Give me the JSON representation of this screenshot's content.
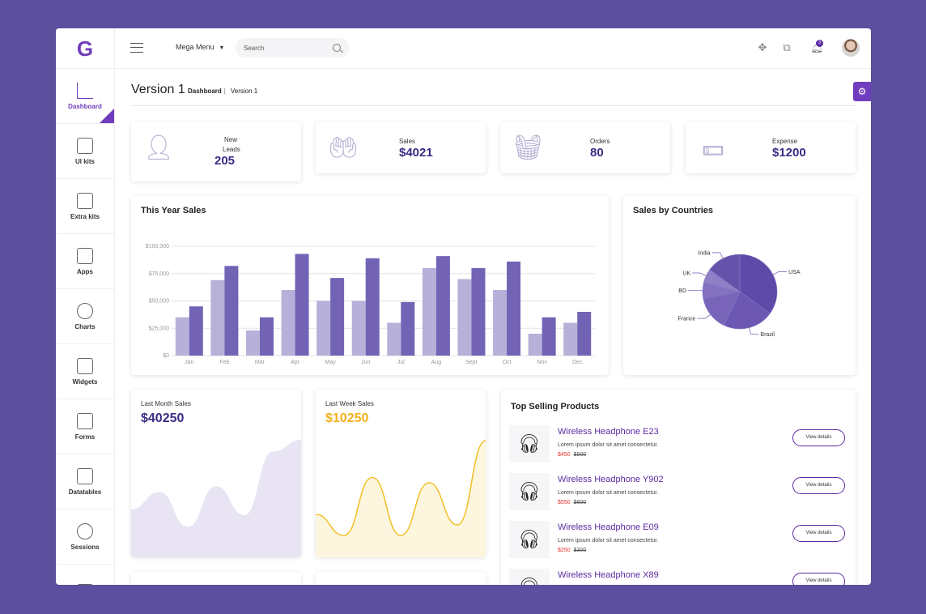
{
  "app": {
    "logo": "G"
  },
  "topbar": {
    "mega_menu": "Mega Menu",
    "search_placeholder": "Search",
    "notification_count": "3"
  },
  "sidebar": {
    "items": [
      {
        "label": "Dashboard",
        "icon": "bar-chart-icon",
        "active": true
      },
      {
        "label": "UI kits",
        "icon": "book-icon"
      },
      {
        "label": "Extra kits",
        "icon": "toolbox-icon"
      },
      {
        "label": "Apps",
        "icon": "monitor-icon"
      },
      {
        "label": "Charts",
        "icon": "pie-chart-icon"
      },
      {
        "label": "Widgets",
        "icon": "window-icon"
      },
      {
        "label": "Forms",
        "icon": "clipboard-icon"
      },
      {
        "label": "Datatables",
        "icon": "table-icon"
      },
      {
        "label": "Sessions",
        "icon": "user-icon"
      },
      {
        "label": "",
        "icon": "pointer-hand-icon"
      }
    ]
  },
  "page": {
    "title": "Version 1",
    "breadcrumb": {
      "home": "Dashboard",
      "current": "Version 1"
    }
  },
  "stats": [
    {
      "label_line1": "New",
      "label_line2": "Leads",
      "value": "205",
      "icon": "add-user-icon"
    },
    {
      "label_line1": "Sales",
      "label_line2": "",
      "value": "$4021",
      "icon": "hand-coins-icon"
    },
    {
      "label_line1": "Orders",
      "label_line2": "",
      "value": "80",
      "icon": "basket-icon"
    },
    {
      "label_line1": "Expense",
      "label_line2": "",
      "value": "$1200",
      "icon": "banknotes-icon"
    }
  ],
  "yearly": {
    "title": "This Year Sales"
  },
  "countries": {
    "title": "Sales by Countries"
  },
  "last_month": {
    "label": "Last Month Sales",
    "value": "$40250"
  },
  "last_week": {
    "label": "Last Week Sales",
    "value": "$10250"
  },
  "top_products": {
    "title": "Top Selling Products",
    "items": [
      {
        "name": "Wireless Headphone E23",
        "desc": "Lorem ipsum dolor sit amet consectetur.",
        "price": "$450",
        "old_price": "$500",
        "button": "View details"
      },
      {
        "name": "Wireless Headphone Y902",
        "desc": "Lorem ipsum dolor sit amet consectetur.",
        "price": "$550",
        "old_price": "$600",
        "button": "View details"
      },
      {
        "name": "Wireless Headphone E09",
        "desc": "Lorem ipsum dolor sit amet consectetur.",
        "price": "$250",
        "old_price": "$300",
        "button": "View details"
      },
      {
        "name": "Wireless Headphone X89",
        "desc": "",
        "price": "",
        "old_price": "",
        "button": "View details"
      }
    ]
  },
  "colors": {
    "accent": "#6f3dbd",
    "bar_light": "#b7b1d9",
    "bar_dark": "#7263b5",
    "pie": "#6a55ae",
    "week_line": "#f2c230",
    "week_fill": "#fdf6df",
    "month_fill": "#e9e4f3"
  },
  "chart_data": [
    {
      "type": "bar",
      "title": "This Year Sales",
      "categories": [
        "Jan",
        "Feb",
        "Mar",
        "Apr",
        "May",
        "Jun",
        "Jul",
        "Aug",
        "Sept",
        "Oct",
        "Nov",
        "Dec"
      ],
      "y_ticks": [
        "$0",
        "$25,000",
        "$50,000",
        "$75,000",
        "$100,000"
      ],
      "ylim": [
        0,
        100000
      ],
      "grid": true,
      "series": [
        {
          "values": [
            35000,
            69000,
            23000,
            60000,
            50000,
            50000,
            30000,
            80000,
            70000,
            60000,
            20000,
            30000
          ]
        },
        {
          "values": [
            45000,
            82000,
            35000,
            93000,
            71000,
            89000,
            49000,
            91000,
            80000,
            86000,
            35000,
            40000
          ]
        }
      ]
    },
    {
      "type": "pie",
      "title": "Sales by Countries",
      "categories": [
        "USA",
        "Brazil",
        "France",
        "BD",
        "UK",
        "India"
      ],
      "values": [
        35,
        22,
        15,
        7,
        6,
        15
      ]
    },
    {
      "type": "area",
      "title": "Last Month Sales",
      "values": [
        40,
        55,
        25,
        60,
        35,
        90,
        100
      ]
    },
    {
      "type": "line",
      "title": "Last Week Sales",
      "values": [
        30,
        10,
        65,
        10,
        60,
        20,
        100
      ]
    }
  ]
}
